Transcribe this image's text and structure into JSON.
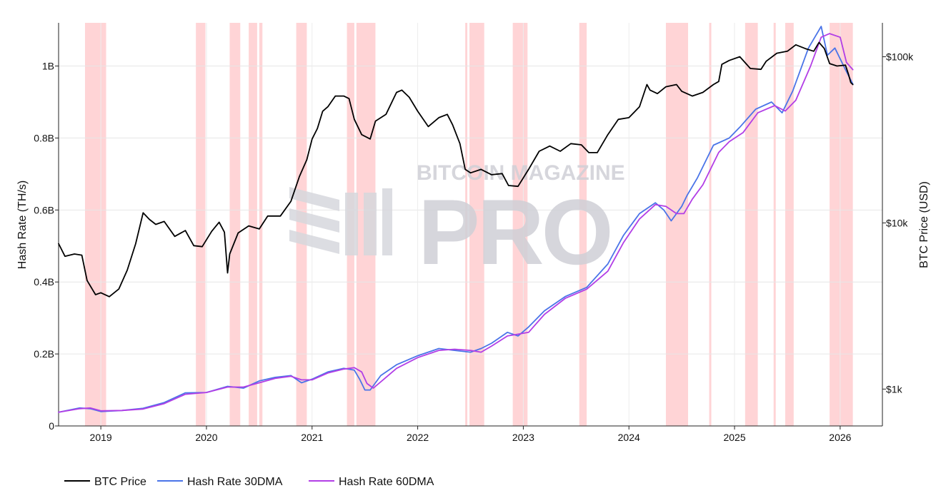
{
  "chart_data": {
    "type": "line",
    "title": "",
    "y_left_label": "Hash Rate (TH/s)",
    "y_right_label": "BTC Price (USD)",
    "y_left_range": [
      0,
      1120000000
    ],
    "y_left_ticks": [
      {
        "value": 0,
        "label": "0"
      },
      {
        "value": 200000000,
        "label": "0.2B"
      },
      {
        "value": 400000000,
        "label": "0.4B"
      },
      {
        "value": 600000000,
        "label": "0.6B"
      },
      {
        "value": 800000000,
        "label": "0.8B"
      },
      {
        "value": 1000000000,
        "label": "1B"
      }
    ],
    "y_right_scale": "log",
    "y_right_range": [
      600,
      160000
    ],
    "y_right_ticks": [
      {
        "value": 1000,
        "label": "$1k"
      },
      {
        "value": 10000,
        "label": "$10k"
      },
      {
        "value": 100000,
        "label": "$100k"
      }
    ],
    "x_range": [
      2018.6,
      2026.4
    ],
    "x_ticks": [
      {
        "value": 2019,
        "label": "2019"
      },
      {
        "value": 2020,
        "label": "2020"
      },
      {
        "value": 2021,
        "label": "2021"
      },
      {
        "value": 2022,
        "label": "2022"
      },
      {
        "value": 2023,
        "label": "2023"
      },
      {
        "value": 2024,
        "label": "2024"
      },
      {
        "value": 2025,
        "label": "2025"
      },
      {
        "value": 2026,
        "label": "2026"
      }
    ],
    "grid": true,
    "legend_position": "bottom-left",
    "shaded_periods": [
      {
        "start": 2018.85,
        "end": 2019.05
      },
      {
        "start": 2019.9,
        "end": 2019.99
      },
      {
        "start": 2020.22,
        "end": 2020.32
      },
      {
        "start": 2020.4,
        "end": 2020.48
      },
      {
        "start": 2020.5,
        "end": 2020.53
      },
      {
        "start": 2020.85,
        "end": 2020.95
      },
      {
        "start": 2021.33,
        "end": 2021.4
      },
      {
        "start": 2021.42,
        "end": 2021.6
      },
      {
        "start": 2022.45,
        "end": 2022.47
      },
      {
        "start": 2022.49,
        "end": 2022.63
      },
      {
        "start": 2022.9,
        "end": 2023.04
      },
      {
        "start": 2023.53,
        "end": 2023.6
      },
      {
        "start": 2024.35,
        "end": 2024.56
      },
      {
        "start": 2024.76,
        "end": 2024.78
      },
      {
        "start": 2025.1,
        "end": 2025.22
      },
      {
        "start": 2025.37,
        "end": 2025.39
      },
      {
        "start": 2025.48,
        "end": 2025.56
      },
      {
        "start": 2025.9,
        "end": 2026.12
      }
    ],
    "series": [
      {
        "name": "BTC Price",
        "color": "#000000",
        "axis": "right",
        "x": [
          2018.6,
          2018.66,
          2018.75,
          2018.82,
          2018.87,
          2018.95,
          2019.0,
          2019.08,
          2019.17,
          2019.25,
          2019.33,
          2019.4,
          2019.46,
          2019.52,
          2019.6,
          2019.7,
          2019.8,
          2019.88,
          2019.96,
          2020.05,
          2020.12,
          2020.17,
          2020.2,
          2020.22,
          2020.3,
          2020.4,
          2020.5,
          2020.58,
          2020.7,
          2020.8,
          2020.88,
          2020.95,
          2021.0,
          2021.05,
          2021.1,
          2021.15,
          2021.22,
          2021.3,
          2021.35,
          2021.4,
          2021.47,
          2021.55,
          2021.6,
          2021.7,
          2021.8,
          2021.85,
          2021.92,
          2022.0,
          2022.1,
          2022.2,
          2022.28,
          2022.33,
          2022.4,
          2022.45,
          2022.5,
          2022.6,
          2022.7,
          2022.8,
          2022.86,
          2022.95,
          2023.05,
          2023.15,
          2023.25,
          2023.35,
          2023.45,
          2023.55,
          2023.62,
          2023.7,
          2023.8,
          2023.9,
          2024.0,
          2024.1,
          2024.17,
          2024.2,
          2024.27,
          2024.35,
          2024.45,
          2024.5,
          2024.6,
          2024.7,
          2024.8,
          2024.85,
          2024.88,
          2024.95,
          2025.05,
          2025.15,
          2025.25,
          2025.3,
          2025.4,
          2025.5,
          2025.58,
          2025.67,
          2025.75,
          2025.8,
          2025.85,
          2025.9,
          2025.97,
          2026.05,
          2026.08,
          2026.1,
          2026.12
        ],
        "y": [
          7500,
          6300,
          6500,
          6400,
          4500,
          3700,
          3800,
          3600,
          4000,
          5200,
          7500,
          11500,
          10500,
          9800,
          10200,
          8300,
          9000,
          7300,
          7200,
          8900,
          10100,
          8800,
          5000,
          6500,
          8700,
          9600,
          9200,
          11000,
          11000,
          13500,
          19000,
          24000,
          32000,
          37000,
          47000,
          50000,
          58000,
          58000,
          56000,
          42000,
          34000,
          32000,
          41000,
          45000,
          61000,
          63000,
          57000,
          47000,
          38000,
          43000,
          45000,
          39000,
          30000,
          21000,
          20000,
          21000,
          19500,
          19800,
          16800,
          16600,
          21000,
          27000,
          29000,
          27000,
          30000,
          29500,
          26500,
          26500,
          34000,
          42000,
          43000,
          50000,
          68000,
          63000,
          60000,
          66000,
          68000,
          62000,
          58000,
          61000,
          68000,
          71000,
          90000,
          95000,
          100000,
          85000,
          84000,
          94000,
          105000,
          108000,
          118000,
          112000,
          108000,
          122000,
          112000,
          91000,
          88000,
          89000,
          78000,
          70000,
          68000
        ]
      },
      {
        "name": "Hash Rate 30DMA",
        "color": "#4a74e8",
        "axis": "left",
        "x": [
          2018.6,
          2018.8,
          2018.9,
          2019.0,
          2019.2,
          2019.4,
          2019.6,
          2019.8,
          2020.0,
          2020.2,
          2020.35,
          2020.5,
          2020.65,
          2020.8,
          2020.9,
          2021.0,
          2021.15,
          2021.3,
          2021.4,
          2021.45,
          2021.5,
          2021.55,
          2021.65,
          2021.8,
          2022.0,
          2022.2,
          2022.35,
          2022.5,
          2022.6,
          2022.7,
          2022.85,
          2022.95,
          2023.05,
          2023.2,
          2023.4,
          2023.6,
          2023.8,
          2023.95,
          2024.1,
          2024.25,
          2024.33,
          2024.4,
          2024.5,
          2024.55,
          2024.65,
          2024.8,
          2024.95,
          2025.05,
          2025.2,
          2025.35,
          2025.45,
          2025.55,
          2025.7,
          2025.82,
          2025.88,
          2025.95,
          2026.05,
          2026.12
        ],
        "y": [
          38000000,
          50000000,
          48000000,
          40000000,
          43000000,
          49000000,
          65000000,
          92000000,
          93000000,
          110000000,
          105000000,
          125000000,
          135000000,
          140000000,
          120000000,
          130000000,
          150000000,
          160000000,
          155000000,
          130000000,
          100000000,
          100000000,
          140000000,
          170000000,
          195000000,
          215000000,
          210000000,
          205000000,
          215000000,
          230000000,
          260000000,
          250000000,
          275000000,
          320000000,
          360000000,
          385000000,
          450000000,
          530000000,
          590000000,
          620000000,
          600000000,
          570000000,
          610000000,
          640000000,
          690000000,
          780000000,
          800000000,
          830000000,
          880000000,
          900000000,
          870000000,
          930000000,
          1050000000,
          1110000000,
          1030000000,
          1050000000,
          990000000,
          950000000
        ]
      },
      {
        "name": "Hash Rate 60DMA",
        "color": "#b23ee6",
        "axis": "left",
        "x": [
          2018.6,
          2018.8,
          2018.9,
          2019.0,
          2019.2,
          2019.4,
          2019.6,
          2019.8,
          2020.0,
          2020.2,
          2020.35,
          2020.5,
          2020.65,
          2020.8,
          2020.9,
          2021.0,
          2021.15,
          2021.3,
          2021.4,
          2021.47,
          2021.52,
          2021.58,
          2021.68,
          2021.8,
          2022.0,
          2022.2,
          2022.35,
          2022.5,
          2022.6,
          2022.7,
          2022.85,
          2022.95,
          2023.05,
          2023.2,
          2023.4,
          2023.6,
          2023.8,
          2023.95,
          2024.1,
          2024.25,
          2024.35,
          2024.45,
          2024.52,
          2024.6,
          2024.7,
          2024.85,
          2024.95,
          2025.08,
          2025.22,
          2025.38,
          2025.48,
          2025.58,
          2025.72,
          2025.82,
          2025.9,
          2026.0,
          2026.06,
          2026.12
        ],
        "y": [
          38000000,
          48000000,
          50000000,
          42000000,
          43000000,
          47000000,
          62000000,
          88000000,
          93000000,
          108000000,
          108000000,
          120000000,
          132000000,
          138000000,
          128000000,
          128000000,
          147000000,
          158000000,
          162000000,
          150000000,
          118000000,
          105000000,
          130000000,
          160000000,
          190000000,
          210000000,
          213000000,
          210000000,
          205000000,
          222000000,
          250000000,
          255000000,
          260000000,
          310000000,
          355000000,
          380000000,
          430000000,
          510000000,
          575000000,
          615000000,
          610000000,
          590000000,
          590000000,
          630000000,
          670000000,
          760000000,
          790000000,
          815000000,
          870000000,
          890000000,
          875000000,
          905000000,
          1000000000,
          1080000000,
          1090000000,
          1080000000,
          1010000000,
          990000000
        ]
      }
    ]
  },
  "watermark": {
    "brand_top": "BITCOIN MAGAZINE",
    "brand_big": "PRO"
  }
}
